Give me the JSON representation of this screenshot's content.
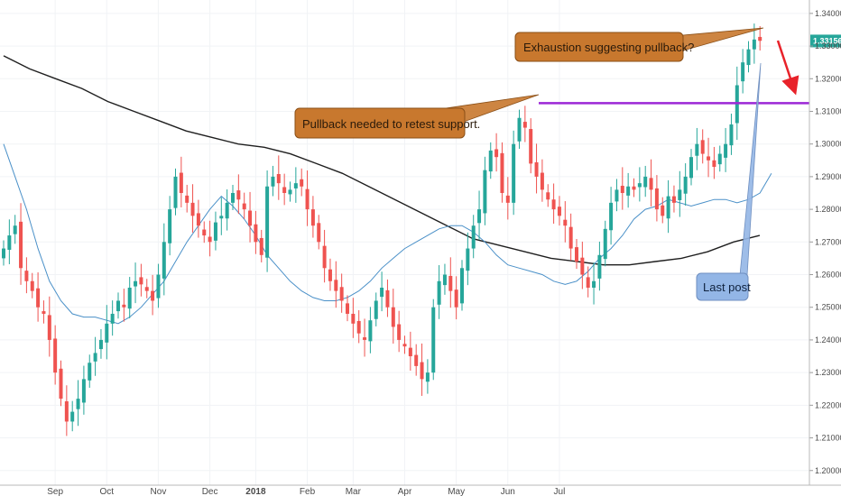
{
  "chart_data": {
    "type": "candlestick",
    "y_axis": {
      "ylim": [
        1.198,
        1.343
      ],
      "ticks": [
        "1.20000",
        "1.21000",
        "1.22000",
        "1.23000",
        "1.24000",
        "1.25000",
        "1.26000",
        "1.27000",
        "1.28000",
        "1.29000",
        "1.30000",
        "1.31000",
        "1.32000",
        "1.33000",
        "1.34000"
      ],
      "position": "right"
    },
    "x_axis": {
      "labels": [
        {
          "text": "Sep",
          "week": 9
        },
        {
          "text": "Oct",
          "week": 18
        },
        {
          "text": "Nov",
          "week": 27
        },
        {
          "text": "Dec",
          "week": 36
        },
        {
          "text": "2018",
          "week": 44,
          "bold": true
        },
        {
          "text": "Feb",
          "week": 53
        },
        {
          "text": "Mar",
          "week": 61
        },
        {
          "text": "Apr",
          "week": 70
        },
        {
          "text": "May",
          "week": 79
        },
        {
          "text": "Jun",
          "week": 88
        },
        {
          "text": "Jul",
          "week": 97
        }
      ]
    },
    "colors": {
      "up": "#26a69a",
      "down": "#ef5350",
      "ma_fast": "#4a90c8",
      "ma_slow": "#1f1f1f",
      "resistance": "#9c27d6",
      "arrow": "#e8222a",
      "last_price_bg": "#26a69a"
    },
    "closes": [
      1.268,
      1.272,
      1.275,
      1.262,
      1.258,
      1.255,
      1.25,
      1.248,
      1.24,
      1.23,
      1.222,
      1.215,
      1.218,
      1.222,
      1.228,
      1.233,
      1.236,
      1.24,
      1.245,
      1.248,
      1.252,
      1.25,
      1.256,
      1.258,
      1.257,
      1.255,
      1.252,
      1.26,
      1.27,
      1.28,
      1.29,
      1.285,
      1.282,
      1.278,
      1.275,
      1.272,
      1.27,
      1.276,
      1.278,
      1.282,
      1.285,
      1.283,
      1.28,
      1.275,
      1.27,
      1.266,
      1.287,
      1.29,
      1.288,
      1.285,
      1.286,
      1.288,
      1.287,
      1.28,
      1.275,
      1.27,
      1.262,
      1.258,
      1.255,
      1.252,
      1.248,
      1.245,
      1.242,
      1.24,
      1.246,
      1.252,
      1.256,
      1.25,
      1.244,
      1.24,
      1.238,
      1.235,
      1.232,
      1.228,
      1.23,
      1.25,
      1.258,
      1.26,
      1.255,
      1.25,
      1.262,
      1.268,
      1.275,
      1.28,
      1.292,
      1.298,
      1.296,
      1.285,
      1.282,
      1.3,
      1.308,
      1.305,
      1.294,
      1.29,
      1.286,
      1.283,
      1.28,
      1.278,
      1.275,
      1.268,
      1.264,
      1.26,
      1.256,
      1.258,
      1.266,
      1.274,
      1.282,
      1.286,
      1.285,
      1.287,
      1.286,
      1.288,
      1.29,
      1.286,
      1.28,
      1.278,
      1.284,
      1.282,
      1.286,
      1.29,
      1.296,
      1.3,
      1.297,
      1.295,
      1.293,
      1.297,
      1.3,
      1.306,
      1.318,
      1.325,
      1.329,
      1.332,
      1.3316
    ],
    "moving_average_fast": [
      1.3,
      1.29,
      1.28,
      1.268,
      1.258,
      1.252,
      1.248,
      1.247,
      1.247,
      1.246,
      1.245,
      1.247,
      1.25,
      1.254,
      1.258,
      1.264,
      1.27,
      1.275,
      1.28,
      1.284,
      1.281,
      1.277,
      1.272,
      1.266,
      1.262,
      1.258,
      1.255,
      1.253,
      1.252,
      1.252,
      1.253,
      1.255,
      1.258,
      1.262,
      1.265,
      1.268,
      1.27,
      1.272,
      1.274,
      1.275,
      1.275,
      1.273,
      1.27,
      1.266,
      1.263,
      1.262,
      1.261,
      1.26,
      1.258,
      1.257,
      1.258,
      1.261,
      1.265,
      1.268,
      1.272,
      1.277,
      1.28,
      1.281,
      1.283,
      1.282,
      1.281,
      1.282,
      1.283,
      1.283,
      1.282,
      1.283,
      1.285,
      1.291
    ],
    "moving_average_slow": [
      1.327,
      1.323,
      1.32,
      1.317,
      1.313,
      1.31,
      1.307,
      1.304,
      1.302,
      1.3,
      1.299,
      1.297,
      1.294,
      1.291,
      1.287,
      1.283,
      1.279,
      1.275,
      1.271,
      1.269,
      1.267,
      1.265,
      1.264,
      1.263,
      1.263,
      1.264,
      1.265,
      1.267,
      1.27,
      1.272
    ],
    "resistance_level": 1.3125,
    "last_price": "1.33156",
    "annotations": [
      {
        "text": "Exhaustion suggesting pullback?",
        "style": "brown"
      },
      {
        "text": "Pullback needed to retest support.",
        "style": "brown"
      },
      {
        "text": "Last post",
        "style": "blue"
      }
    ]
  }
}
